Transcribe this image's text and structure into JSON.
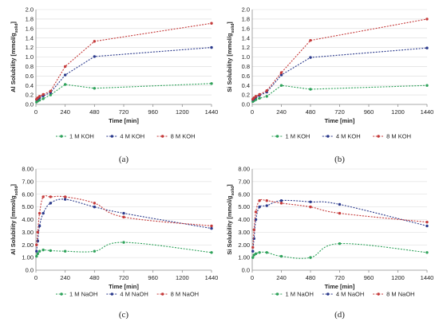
{
  "chart_data": [
    {
      "type": "line",
      "panel_label": "(a)",
      "xlabel": "Time [min]",
      "ylabel": "Al Solubility [mmol/gₛₒₗᵢd]",
      "ylabel_main": "Al Solubility [mmol/g",
      "ylabel_sub": "solid",
      "ylabel_end": "]",
      "xlim": [
        0,
        1440
      ],
      "ylim": [
        0,
        2.0
      ],
      "x_ticks": [
        0,
        240,
        480,
        720,
        960,
        1200,
        1440
      ],
      "y_ticks": [
        0,
        0.2,
        0.4,
        0.6,
        0.8,
        1.0,
        1.2,
        1.4,
        1.6,
        1.8,
        2.0
      ],
      "y_tick_labels": [
        "0.0",
        "0.2",
        "0.4",
        "0.6",
        "0.8",
        "1.0",
        "1.2",
        "1.4",
        "1.6",
        "1.8",
        "2.0"
      ],
      "curve": "linear",
      "legend_position": "bottom",
      "series": [
        {
          "name": "1 M KOH",
          "color": "#2ea25a",
          "x": [
            5,
            15,
            30,
            60,
            120,
            240,
            480,
            1440
          ],
          "y": [
            0.05,
            0.07,
            0.09,
            0.12,
            0.2,
            0.42,
            0.34,
            0.44
          ]
        },
        {
          "name": "4 M KOH",
          "color": "#2b3a8c",
          "x": [
            5,
            15,
            30,
            60,
            120,
            240,
            480,
            1440
          ],
          "y": [
            0.1,
            0.12,
            0.14,
            0.18,
            0.25,
            0.62,
            1.01,
            1.2
          ]
        },
        {
          "name": "8 M KOH",
          "color": "#c53a3a",
          "x": [
            5,
            15,
            30,
            60,
            120,
            240,
            480,
            1440
          ],
          "y": [
            0.11,
            0.14,
            0.17,
            0.21,
            0.28,
            0.8,
            1.33,
            1.71
          ]
        }
      ]
    },
    {
      "type": "line",
      "panel_label": "(b)",
      "xlabel": "Time [min]",
      "ylabel": "Si Solubility [mmol/gₛₒₗᵢd]",
      "ylabel_main": "Si Solubility [mmol/g",
      "ylabel_sub": "solid",
      "ylabel_end": "]",
      "xlim": [
        0,
        1440
      ],
      "ylim": [
        0,
        2.0
      ],
      "x_ticks": [
        0,
        240,
        480,
        720,
        960,
        1200,
        1440
      ],
      "y_ticks": [
        0,
        0.2,
        0.4,
        0.6,
        0.8,
        1.0,
        1.2,
        1.4,
        1.6,
        1.8,
        2.0
      ],
      "y_tick_labels": [
        "0.0",
        "0.2",
        "0.4",
        "0.6",
        "0.8",
        "1.0",
        "1.2",
        "1.4",
        "1.6",
        "1.8",
        "2.0"
      ],
      "curve": "linear",
      "legend_position": "bottom",
      "series": [
        {
          "name": "1 M KOH",
          "color": "#2ea25a",
          "x": [
            5,
            15,
            30,
            60,
            120,
            240,
            480,
            1440
          ],
          "y": [
            0.06,
            0.08,
            0.1,
            0.13,
            0.17,
            0.4,
            0.32,
            0.4
          ]
        },
        {
          "name": "4 M KOH",
          "color": "#2b3a8c",
          "x": [
            5,
            15,
            30,
            60,
            120,
            240,
            480,
            1440
          ],
          "y": [
            0.1,
            0.12,
            0.15,
            0.19,
            0.26,
            0.62,
            0.99,
            1.19
          ]
        },
        {
          "name": "8 M KOH",
          "color": "#c53a3a",
          "x": [
            5,
            15,
            30,
            60,
            120,
            240,
            480,
            1440
          ],
          "y": [
            0.11,
            0.14,
            0.17,
            0.21,
            0.29,
            0.67,
            1.35,
            1.8
          ]
        }
      ]
    },
    {
      "type": "line",
      "panel_label": "(c)",
      "xlabel": "Time [min]",
      "ylabel": "Al Solubility [mmol/gₛₒₗᵢd]",
      "ylabel_main": "Al Solubility [mmol/g",
      "ylabel_sub": "solid",
      "ylabel_end": "]",
      "xlim": [
        0,
        1440
      ],
      "ylim": [
        0,
        8.0
      ],
      "x_ticks": [
        0,
        240,
        480,
        720,
        960,
        1200,
        1440
      ],
      "y_ticks": [
        0,
        1,
        2,
        3,
        4,
        5,
        6,
        7,
        8
      ],
      "y_tick_labels": [
        "0.0",
        "1.00",
        "2.00",
        "3.00",
        "4.00",
        "5.00",
        "6.00",
        "7.00",
        "8.00"
      ],
      "curve": "smooth",
      "legend_position": "bottom",
      "series": [
        {
          "name": "1 M NaOH",
          "color": "#2ea25a",
          "x": [
            5,
            15,
            30,
            60,
            120,
            240,
            480,
            720,
            1440
          ],
          "y": [
            1.1,
            1.3,
            1.5,
            1.6,
            1.55,
            1.5,
            1.5,
            2.2,
            1.4
          ]
        },
        {
          "name": "4 M NaOH",
          "color": "#2b3a8c",
          "x": [
            5,
            15,
            30,
            60,
            120,
            240,
            480,
            720,
            1440
          ],
          "y": [
            1.5,
            2.3,
            3.5,
            4.5,
            5.3,
            5.6,
            5.0,
            4.5,
            3.3
          ]
        },
        {
          "name": "8 M NaOH",
          "color": "#c53a3a",
          "x": [
            5,
            15,
            30,
            60,
            120,
            240,
            480,
            720,
            1440
          ],
          "y": [
            2.0,
            3.0,
            4.5,
            5.8,
            5.8,
            5.8,
            5.3,
            4.2,
            3.5
          ]
        }
      ]
    },
    {
      "type": "line",
      "panel_label": "(d)",
      "xlabel": "Time [min]",
      "ylabel": "Si Solubility [mmol/gₛₒₗᵢd]",
      "ylabel_main": "Si Solubility [mmol/g",
      "ylabel_sub": "solid",
      "ylabel_end": "]",
      "xlim": [
        0,
        1440
      ],
      "ylim": [
        0,
        8.0
      ],
      "x_ticks": [
        0,
        240,
        480,
        720,
        960,
        1200,
        1440
      ],
      "y_ticks": [
        0,
        1,
        2,
        3,
        4,
        5,
        6,
        7,
        8
      ],
      "y_tick_labels": [
        "0.0",
        "1.00",
        "2.00",
        "3.00",
        "4.00",
        "5.00",
        "6.00",
        "7.00",
        "8.00"
      ],
      "curve": "smooth",
      "legend_position": "bottom",
      "series": [
        {
          "name": "1 M NaOH",
          "color": "#2ea25a",
          "x": [
            5,
            15,
            30,
            60,
            120,
            240,
            480,
            720,
            1440
          ],
          "y": [
            1.0,
            1.2,
            1.3,
            1.4,
            1.4,
            1.1,
            1.0,
            2.1,
            1.4
          ]
        },
        {
          "name": "4 M NaOH",
          "color": "#2b3a8c",
          "x": [
            5,
            15,
            30,
            60,
            120,
            240,
            480,
            720,
            1440
          ],
          "y": [
            1.5,
            2.5,
            4.0,
            5.0,
            5.1,
            5.5,
            5.4,
            5.2,
            3.5
          ]
        },
        {
          "name": "8 M NaOH",
          "color": "#c53a3a",
          "x": [
            5,
            15,
            30,
            60,
            120,
            240,
            480,
            720,
            1440
          ],
          "y": [
            1.8,
            3.2,
            4.6,
            5.5,
            5.5,
            5.3,
            5.0,
            4.5,
            3.8
          ]
        }
      ]
    }
  ]
}
